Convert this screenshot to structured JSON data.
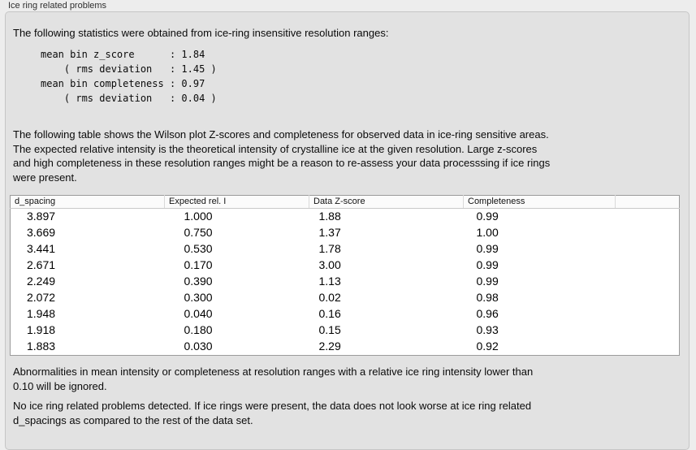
{
  "header": {
    "title": "Ice ring related problems"
  },
  "panel": {
    "intro": "The following statistics were obtained from ice-ring insensitive resolution ranges:",
    "stats_block": "mean bin z_score      : 1.84\n    ( rms deviation   : 1.45 )\nmean bin completeness : 0.97\n    ( rms deviation   : 0.04 )",
    "table_description": "The following table shows the Wilson plot Z-scores and completeness for observed data in ice-ring sensitive areas.\nThe expected relative intensity is the theoretical intensity of crystalline ice at the given resolution. Large z-scores\nand high completeness in these resolution ranges might be a reason to re-assess your data processsing if ice rings\nwere present.",
    "note": "Abnormalities in mean intensity or completeness at resolution ranges with a relative ice ring intensity lower than\n0.10 will be ignored.",
    "conclusion": "No ice ring related problems detected. If ice rings were present, the data does not look worse at ice ring related\nd_spacings as compared to the rest of the data set."
  },
  "table": {
    "columns": [
      "d_spacing",
      "Expected rel. I",
      "Data Z-score",
      "Completeness",
      ""
    ],
    "rows": [
      [
        "3.897",
        "1.000",
        "1.88",
        "0.99"
      ],
      [
        "3.669",
        "0.750",
        "1.37",
        "1.00"
      ],
      [
        "3.441",
        "0.530",
        "1.78",
        "0.99"
      ],
      [
        "2.671",
        "0.170",
        "3.00",
        "0.99"
      ],
      [
        "2.249",
        "0.390",
        "1.13",
        "0.99"
      ],
      [
        "2.072",
        "0.300",
        "0.02",
        "0.98"
      ],
      [
        "1.948",
        "0.040",
        "0.16",
        "0.96"
      ],
      [
        "1.918",
        "0.180",
        "0.15",
        "0.93"
      ],
      [
        "1.883",
        "0.030",
        "2.29",
        "0.92"
      ]
    ]
  },
  "colors": {
    "page_bg": "#ededed",
    "panel_bg": "#e2e2e2",
    "panel_border": "#c6c6c6",
    "table_bg": "#ffffff",
    "table_border": "#9b9b9b",
    "text": "#000000"
  }
}
